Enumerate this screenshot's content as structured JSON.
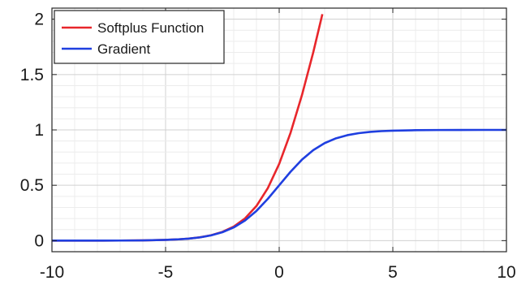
{
  "chart_data": {
    "type": "line",
    "xlim": [
      -10,
      10
    ],
    "ylim": [
      -0.1,
      2.1
    ],
    "xticks": [
      -10,
      -5,
      0,
      5,
      10
    ],
    "yticks": [
      0,
      0.5,
      1,
      1.5,
      2
    ],
    "xtick_labels": [
      "-10",
      "-5",
      "0",
      "5",
      "10"
    ],
    "ytick_labels": [
      "0",
      "0.5",
      "1",
      "1.5",
      "2"
    ],
    "minor_grid_step_x": 1,
    "minor_grid_step_y": 0.1,
    "grid": true,
    "legend_position": "top-left",
    "series": [
      {
        "name": "Softplus Function",
        "color": "#e8262b",
        "x": [
          -10,
          -9,
          -8,
          -7,
          -6,
          -5,
          -4.5,
          -4,
          -3.5,
          -3,
          -2.5,
          -2,
          -1.5,
          -1,
          -0.5,
          0,
          0.5,
          1,
          1.5,
          1.9
        ],
        "y": [
          0.0,
          0.0001,
          0.0003,
          0.0009,
          0.0025,
          0.0067,
          0.011,
          0.018,
          0.0298,
          0.0486,
          0.0789,
          0.1269,
          0.2014,
          0.3133,
          0.4741,
          0.6931,
          0.9741,
          1.3133,
          1.7014,
          2.0457
        ]
      },
      {
        "name": "Gradient",
        "color": "#1f3fe0",
        "x": [
          -10,
          -9,
          -8,
          -7,
          -6,
          -5,
          -4.5,
          -4,
          -3.5,
          -3,
          -2.5,
          -2,
          -1.5,
          -1,
          -0.5,
          0,
          0.5,
          1,
          1.5,
          2,
          2.5,
          3,
          3.5,
          4,
          4.5,
          5,
          6,
          7,
          8,
          9,
          10
        ],
        "y": [
          0.0,
          0.0001,
          0.0003,
          0.0009,
          0.0025,
          0.0067,
          0.011,
          0.018,
          0.0293,
          0.0474,
          0.0759,
          0.1192,
          0.1824,
          0.2689,
          0.3775,
          0.5,
          0.6225,
          0.7311,
          0.8176,
          0.8808,
          0.9241,
          0.9526,
          0.9707,
          0.982,
          0.989,
          0.9933,
          0.9975,
          0.9991,
          0.9997,
          0.9999,
          1.0
        ]
      }
    ]
  }
}
